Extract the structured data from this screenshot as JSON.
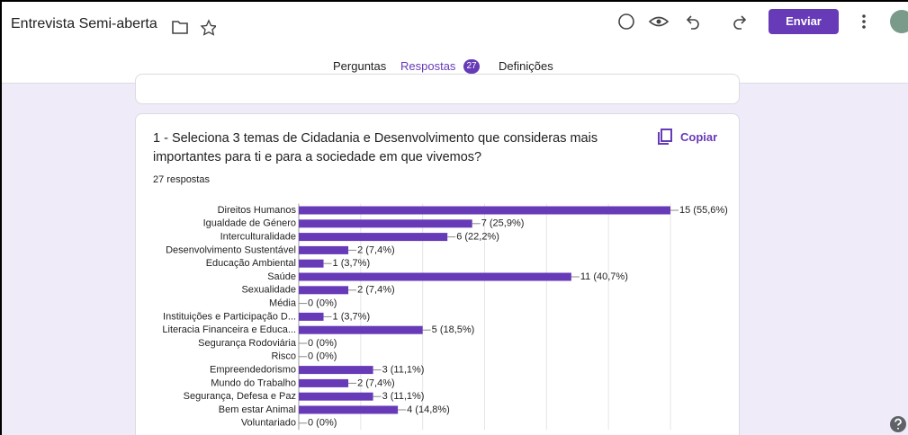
{
  "header": {
    "title": "Entrevista Semi-aberta",
    "send_button": "Enviar"
  },
  "tabs": {
    "items": [
      "Perguntas",
      "Respostas",
      "Definições"
    ],
    "responses_badge": "27"
  },
  "question": {
    "title": "1 - Seleciona 3 temas de Cidadania e Desenvolvimento que consideras mais importantes para ti e para a sociedade em que vivemos?",
    "copy_button": "Copiar",
    "response_count": "27 respostas"
  },
  "chart_data": {
    "type": "hbar",
    "categories": [
      "Direitos Humanos",
      "Igualdade de Género",
      "Interculturalidade",
      "Desenvolvimento Sustentável",
      "Educação Ambiental",
      "Saúde",
      "Sexualidade",
      "Média",
      "Instituições e Participação D...",
      "Literacia Financeira e Educa...",
      "Segurança Rodoviária",
      "Risco",
      "Empreendedorismo",
      "Mundo do Trabalho",
      "Segurança, Defesa e Paz",
      "Bem estar Animal",
      "Voluntariado"
    ],
    "values": [
      15,
      7,
      6,
      2,
      1,
      11,
      2,
      0,
      1,
      5,
      0,
      0,
      3,
      2,
      3,
      4,
      0
    ],
    "value_labels": [
      "15 (55,6%)",
      "7 (25,9%)",
      "6 (22,2%)",
      "2 (7,4%)",
      "1 (3,7%)",
      "11 (40,7%)",
      "2 (7,4%)",
      "0 (0%)",
      "1 (3,7%)",
      "5 (18,5%)",
      "0 (0%)",
      "0 (0%)",
      "3 (11,1%)",
      "2 (7,4%)",
      "3 (11,1%)",
      "4 (14,8%)",
      "0 (0%)"
    ],
    "color": "#673ab7",
    "xlim": [
      0,
      15
    ],
    "xticks": [
      0,
      2.5,
      5,
      7.5,
      10,
      12.5,
      15
    ],
    "grid": true
  }
}
